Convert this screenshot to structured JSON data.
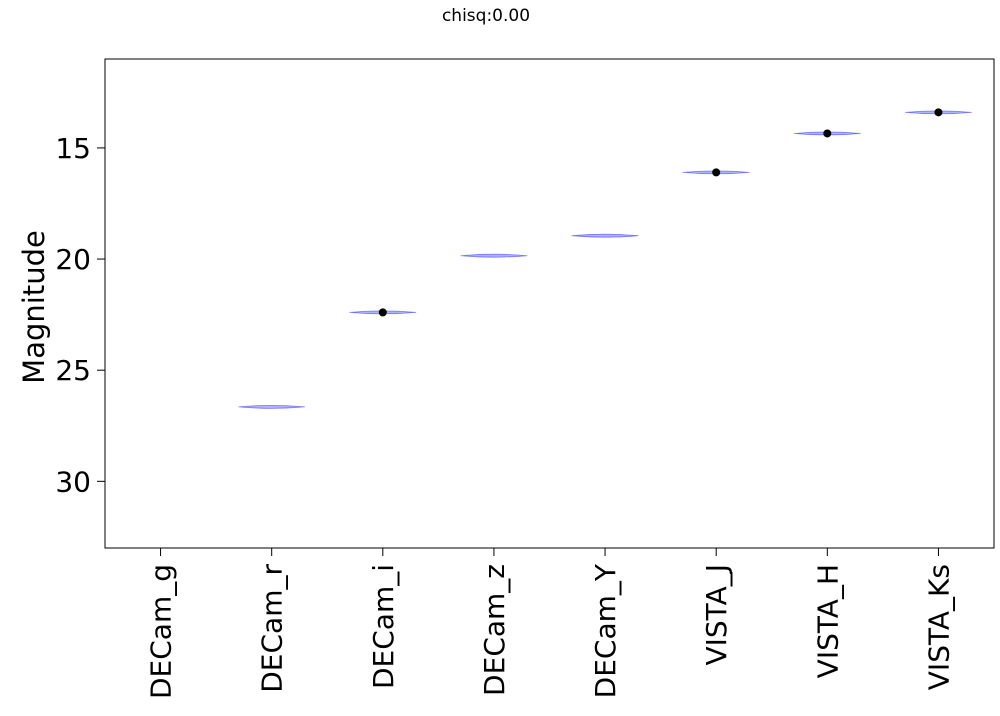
{
  "chart_data": {
    "type": "scatter",
    "title": "chisq:0.00",
    "xlabel": "",
    "ylabel": "Magnitude",
    "y_inverted": true,
    "ylim": [
      33,
      11
    ],
    "yticks": [
      15,
      20,
      25,
      30
    ],
    "grid": false,
    "categories": [
      "DECam_g",
      "DECam_r",
      "DECam_i",
      "DECam_z",
      "DECam_Y",
      "VISTA_J",
      "VISTA_H",
      "VISTA_Ks"
    ],
    "series": [
      {
        "kind": "model-violin",
        "color": "#0000ff",
        "values": [
          null,
          26.65,
          22.4,
          19.85,
          18.95,
          16.1,
          14.35,
          13.4
        ]
      },
      {
        "kind": "observed-points",
        "color": "#000000",
        "values": [
          null,
          null,
          22.4,
          null,
          null,
          16.1,
          14.35,
          13.4
        ]
      }
    ]
  }
}
